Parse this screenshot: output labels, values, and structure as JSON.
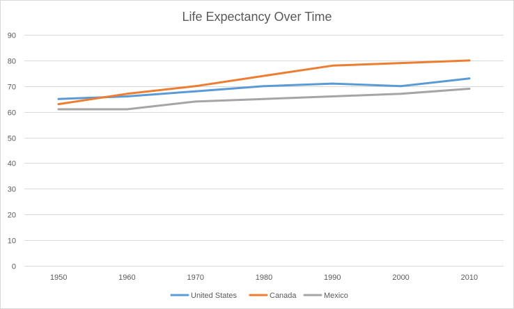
{
  "chart_data": {
    "type": "line",
    "title": "Life Expectancy Over Time",
    "xlabel": "",
    "ylabel": "",
    "categories": [
      "1950",
      "1960",
      "1970",
      "1980",
      "1990",
      "2000",
      "2010"
    ],
    "ylim": [
      0,
      90
    ],
    "yticks": [
      "0",
      "10",
      "20",
      "30",
      "40",
      "50",
      "60",
      "70",
      "80",
      "90"
    ],
    "grid": true,
    "legend_position": "bottom",
    "series": [
      {
        "name": "United States",
        "color": "#5b9bd5",
        "values": [
          65,
          66,
          68,
          70,
          71,
          70,
          73
        ]
      },
      {
        "name": "Canada",
        "color": "#ed7d31",
        "values": [
          63,
          67,
          70,
          74,
          78,
          79,
          80
        ]
      },
      {
        "name": "Mexico",
        "color": "#a5a5a5",
        "values": [
          61,
          61,
          64,
          65,
          66,
          67,
          69
        ]
      }
    ]
  }
}
